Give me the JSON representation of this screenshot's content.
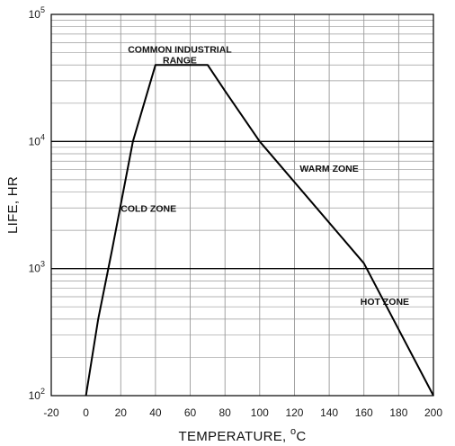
{
  "chart_data": {
    "type": "line",
    "xlabel": "TEMPERATURE, ",
    "xlabel_unit_sup": "o",
    "xlabel_unit": "C",
    "ylabel": "LIFE, HR",
    "xlim": [
      -20,
      200
    ],
    "ylim": [
      100,
      100000
    ],
    "yscale": "log",
    "grid": true,
    "x_ticks": [
      "-20",
      "0",
      "20",
      "40",
      "60",
      "80",
      "100",
      "120",
      "140",
      "160",
      "180",
      "200"
    ],
    "y_ticks": [
      {
        "base": "10",
        "exp": "2",
        "value": 100
      },
      {
        "base": "10",
        "exp": "3",
        "value": 1000
      },
      {
        "base": "10",
        "exp": "4",
        "value": 10000
      },
      {
        "base": "10",
        "exp": "5",
        "value": 100000
      }
    ],
    "series": [
      {
        "color": "#000000",
        "x": [
          0,
          7,
          15,
          27,
          40,
          70,
          80,
          100,
          160,
          200
        ],
        "y": [
          100,
          400,
          1400,
          10000,
          40000,
          40000,
          25000,
          10000,
          1100,
          100
        ]
      }
    ],
    "annotations": [
      {
        "lines": [
          "COMMON INDUSTRIAL",
          "RANGE"
        ],
        "x": 54,
        "y": 50000
      },
      {
        "lines": [
          "WARM ZONE"
        ],
        "x": 140,
        "y": 5800
      },
      {
        "lines": [
          "COLD ZONE"
        ],
        "x": 36,
        "y": 2800
      },
      {
        "lines": [
          "HOT ZONE"
        ],
        "x": 172,
        "y": 520
      }
    ]
  }
}
